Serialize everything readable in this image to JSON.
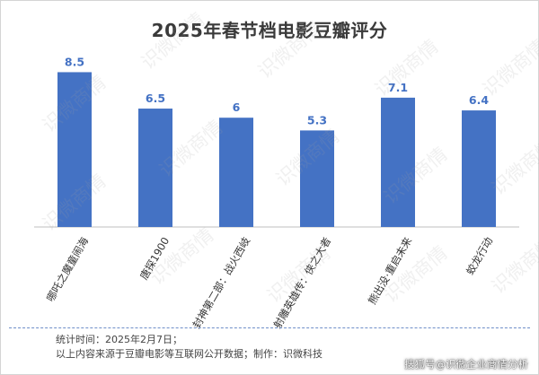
{
  "chart_data": {
    "type": "bar",
    "title": "2025年春节档电影豆瓣评分",
    "categories": [
      "哪吒之魔童闹海",
      "唐探1900",
      "封神第二部：战火西岐",
      "射雕英雄传：侠之大者",
      "熊出没·重启未来",
      "蛟龙行动"
    ],
    "values": [
      8.5,
      6.5,
      6,
      5.3,
      7.1,
      6.4
    ],
    "value_labels": [
      "8.5",
      "6.5",
      "6",
      "5.3",
      "7.1",
      "6.4"
    ],
    "ylim": [
      0,
      10
    ],
    "xlabel": "",
    "ylabel": "",
    "grid": false,
    "legend": "none",
    "bar_color": "#4472c4",
    "label_color": "#4472c4"
  },
  "footer": {
    "note_line1": "统计时间：2025年2月7日；",
    "note_line2": "以上内容来源于豆瓣电影等互联网公开数据；制作：识微科技",
    "source": "搜狐号@识微企业商情分析"
  },
  "watermark": "识微商情",
  "colors": {
    "axis": "#bfbfbf",
    "divider": "#6f8fc9"
  }
}
